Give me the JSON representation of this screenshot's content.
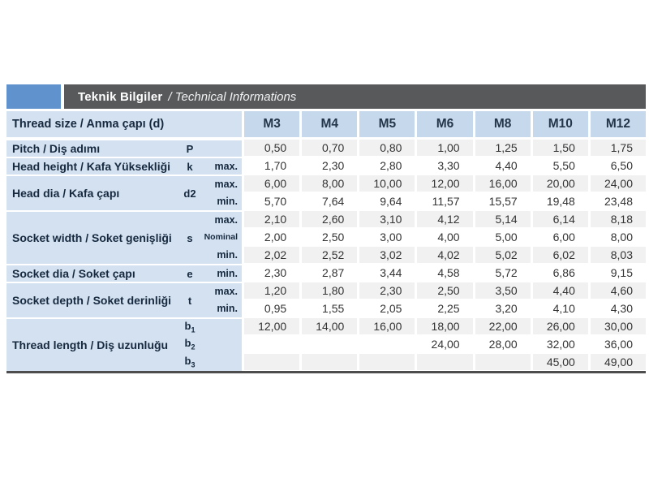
{
  "header": {
    "title_tr": "Teknik Bilgiler",
    "title_en": "/ Technical Informations"
  },
  "colors": {
    "accent_blue": "#6093ce",
    "title_bar_gray": "#58595b",
    "label_bg_blue": "#d3e1f0",
    "column_header_blue": "#c6d9ec",
    "row_band_gray": "#f1f1f1",
    "bottom_border_gray": "#4d4d4d"
  },
  "table": {
    "size_header_label": "Thread size / Anma çapı (d)",
    "columns": [
      "M3",
      "M4",
      "M5",
      "M6",
      "M8",
      "M10",
      "M12"
    ],
    "groups": [
      {
        "label": "Pitch / Diş adımı",
        "symbol": "P",
        "rows": [
          {
            "sub": "",
            "values": [
              "0,50",
              "0,70",
              "0,80",
              "1,00",
              "1,25",
              "1,50",
              "1,75"
            ]
          }
        ]
      },
      {
        "label": "Head height / Kafa Yüksekliği",
        "symbol": "k",
        "rows": [
          {
            "sub": "max.",
            "values": [
              "1,70",
              "2,30",
              "2,80",
              "3,30",
              "4,40",
              "5,50",
              "6,50"
            ]
          }
        ]
      },
      {
        "label": "Head dia / Kafa çapı",
        "symbol": "d2",
        "rows": [
          {
            "sub": "max.",
            "values": [
              "6,00",
              "8,00",
              "10,00",
              "12,00",
              "16,00",
              "20,00",
              "24,00"
            ]
          },
          {
            "sub": "min.",
            "values": [
              "5,70",
              "7,64",
              "9,64",
              "11,57",
              "15,57",
              "19,48",
              "23,48"
            ]
          }
        ]
      },
      {
        "label": "Socket width / Soket genişliği",
        "symbol": "s",
        "rows": [
          {
            "sub": "max.",
            "values": [
              "2,10",
              "2,60",
              "3,10",
              "4,12",
              "5,14",
              "6,14",
              "8,18"
            ]
          },
          {
            "sub": "Nominal",
            "small": true,
            "values": [
              "2,00",
              "2,50",
              "3,00",
              "4,00",
              "5,00",
              "6,00",
              "8,00"
            ]
          },
          {
            "sub": "min.",
            "values": [
              "2,02",
              "2,52",
              "3,02",
              "4,02",
              "5,02",
              "6,02",
              "8,03"
            ]
          }
        ]
      },
      {
        "label": "Socket dia / Soket çapı",
        "symbol": "e",
        "rows": [
          {
            "sub": "min.",
            "values": [
              "2,30",
              "2,87",
              "3,44",
              "4,58",
              "5,72",
              "6,86",
              "9,15"
            ]
          }
        ]
      },
      {
        "label": "Socket depth / Soket derinliği",
        "symbol": "t",
        "rows": [
          {
            "sub": "max.",
            "values": [
              "1,20",
              "1,80",
              "2,30",
              "2,50",
              "3,50",
              "4,40",
              "4,60"
            ]
          },
          {
            "sub": "min.",
            "values": [
              "0,95",
              "1,55",
              "2,05",
              "2,25",
              "3,20",
              "4,10",
              "4,30"
            ]
          }
        ]
      },
      {
        "label": "Thread length / Diş uzunluğu",
        "symbol": "",
        "rows": [
          {
            "sym": "b",
            "sym_sub": "1",
            "sub": "",
            "values": [
              "12,00",
              "14,00",
              "16,00",
              "18,00",
              "22,00",
              "26,00",
              "30,00"
            ]
          },
          {
            "sym": "b",
            "sym_sub": "2",
            "sub": "",
            "values": [
              "",
              "",
              "",
              "24,00",
              "28,00",
              "32,00",
              "36,00"
            ]
          },
          {
            "sym": "b",
            "sym_sub": "3",
            "sub": "",
            "values": [
              "",
              "",
              "",
              "",
              "",
              "45,00",
              "49,00"
            ]
          }
        ]
      }
    ]
  }
}
